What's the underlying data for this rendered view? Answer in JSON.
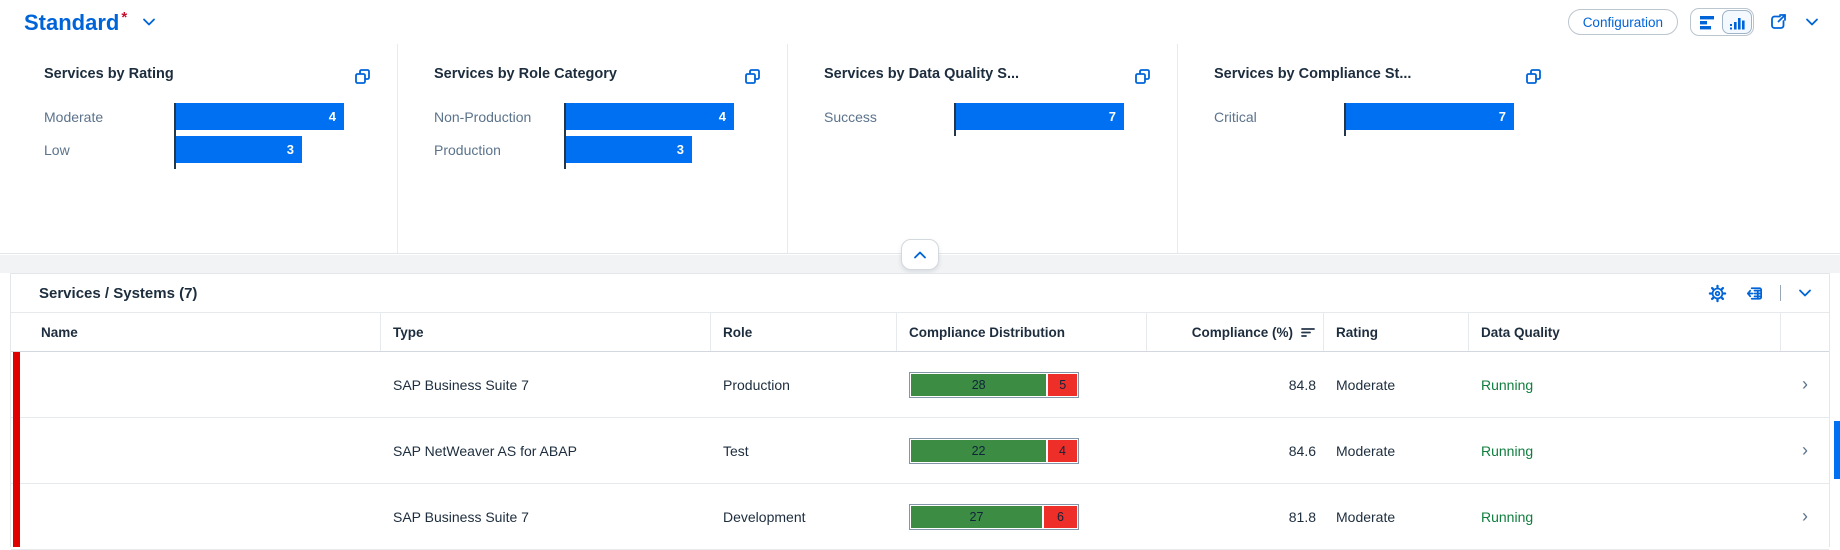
{
  "header": {
    "title": "Standard",
    "modified_marker": "*",
    "configuration_label": "Configuration"
  },
  "charts": [
    {
      "title": "Services by Rating",
      "bars": [
        {
          "label": "Moderate",
          "value": 4,
          "pct": 100
        },
        {
          "label": "Low",
          "value": 3,
          "pct": 75
        }
      ]
    },
    {
      "title": "Services by Role Category",
      "bars": [
        {
          "label": "Non-Production",
          "value": 4,
          "pct": 100
        },
        {
          "label": "Production",
          "value": 3,
          "pct": 75
        }
      ]
    },
    {
      "title": "Services by Data Quality S...",
      "bars": [
        {
          "label": "Success",
          "value": 7,
          "pct": 100
        }
      ]
    },
    {
      "title": "Services by Compliance St...",
      "bars": [
        {
          "label": "Critical",
          "value": 7,
          "pct": 100
        }
      ]
    }
  ],
  "chart_data": [
    {
      "type": "bar",
      "title": "Services by Rating",
      "categories": [
        "Moderate",
        "Low"
      ],
      "values": [
        4,
        3
      ]
    },
    {
      "type": "bar",
      "title": "Services by Role Category",
      "categories": [
        "Non-Production",
        "Production"
      ],
      "values": [
        4,
        3
      ]
    },
    {
      "type": "bar",
      "title": "Services by Data Quality S...",
      "categories": [
        "Success"
      ],
      "values": [
        7
      ]
    },
    {
      "type": "bar",
      "title": "Services by Compliance St...",
      "categories": [
        "Critical"
      ],
      "values": [
        7
      ]
    }
  ],
  "table": {
    "title": "Services / Systems (7)",
    "columns": [
      "Name",
      "Type",
      "Role",
      "Compliance Distribution",
      "Compliance (%)",
      "Rating",
      "Data Quality"
    ],
    "rows": [
      {
        "type": "SAP Business Suite 7",
        "role": "Production",
        "dist_green": 28,
        "dist_red": 5,
        "compliance": "84.8",
        "rating": "Moderate",
        "data_quality": "Running"
      },
      {
        "type": "SAP NetWeaver AS for ABAP",
        "role": "Test",
        "dist_green": 22,
        "dist_red": 4,
        "compliance": "84.6",
        "rating": "Moderate",
        "data_quality": "Running"
      },
      {
        "type": "SAP Business Suite 7",
        "role": "Development",
        "dist_green": 27,
        "dist_red": 6,
        "compliance": "81.8",
        "rating": "Moderate",
        "data_quality": "Running"
      }
    ]
  },
  "glyphs": {
    "row_nav": "›"
  },
  "icons": {
    "variant_selector": "chevron-down-icon",
    "chart_toggle_left": "horizontal-bar-chart-icon",
    "chart_toggle_right": "vertical-bar-chart-icon",
    "share": "share-icon",
    "header_menu": "chevron-down-icon",
    "chart_popout": "open-in-new-window-icon",
    "table_settings": "gear-icon",
    "table_export": "export-spreadsheet-icon",
    "table_collapse": "chevron-down-icon",
    "panel_collapse": "chevron-up-icon",
    "sort": "sort-lines-icon"
  },
  "colors": {
    "accent_blue": "#0064d9",
    "bar_blue": "#0070f2",
    "dist_green": "#3d8c43",
    "dist_red": "#ee2e29",
    "row_indicator_red": "#e10000",
    "data_quality_green": "#107e3e"
  }
}
